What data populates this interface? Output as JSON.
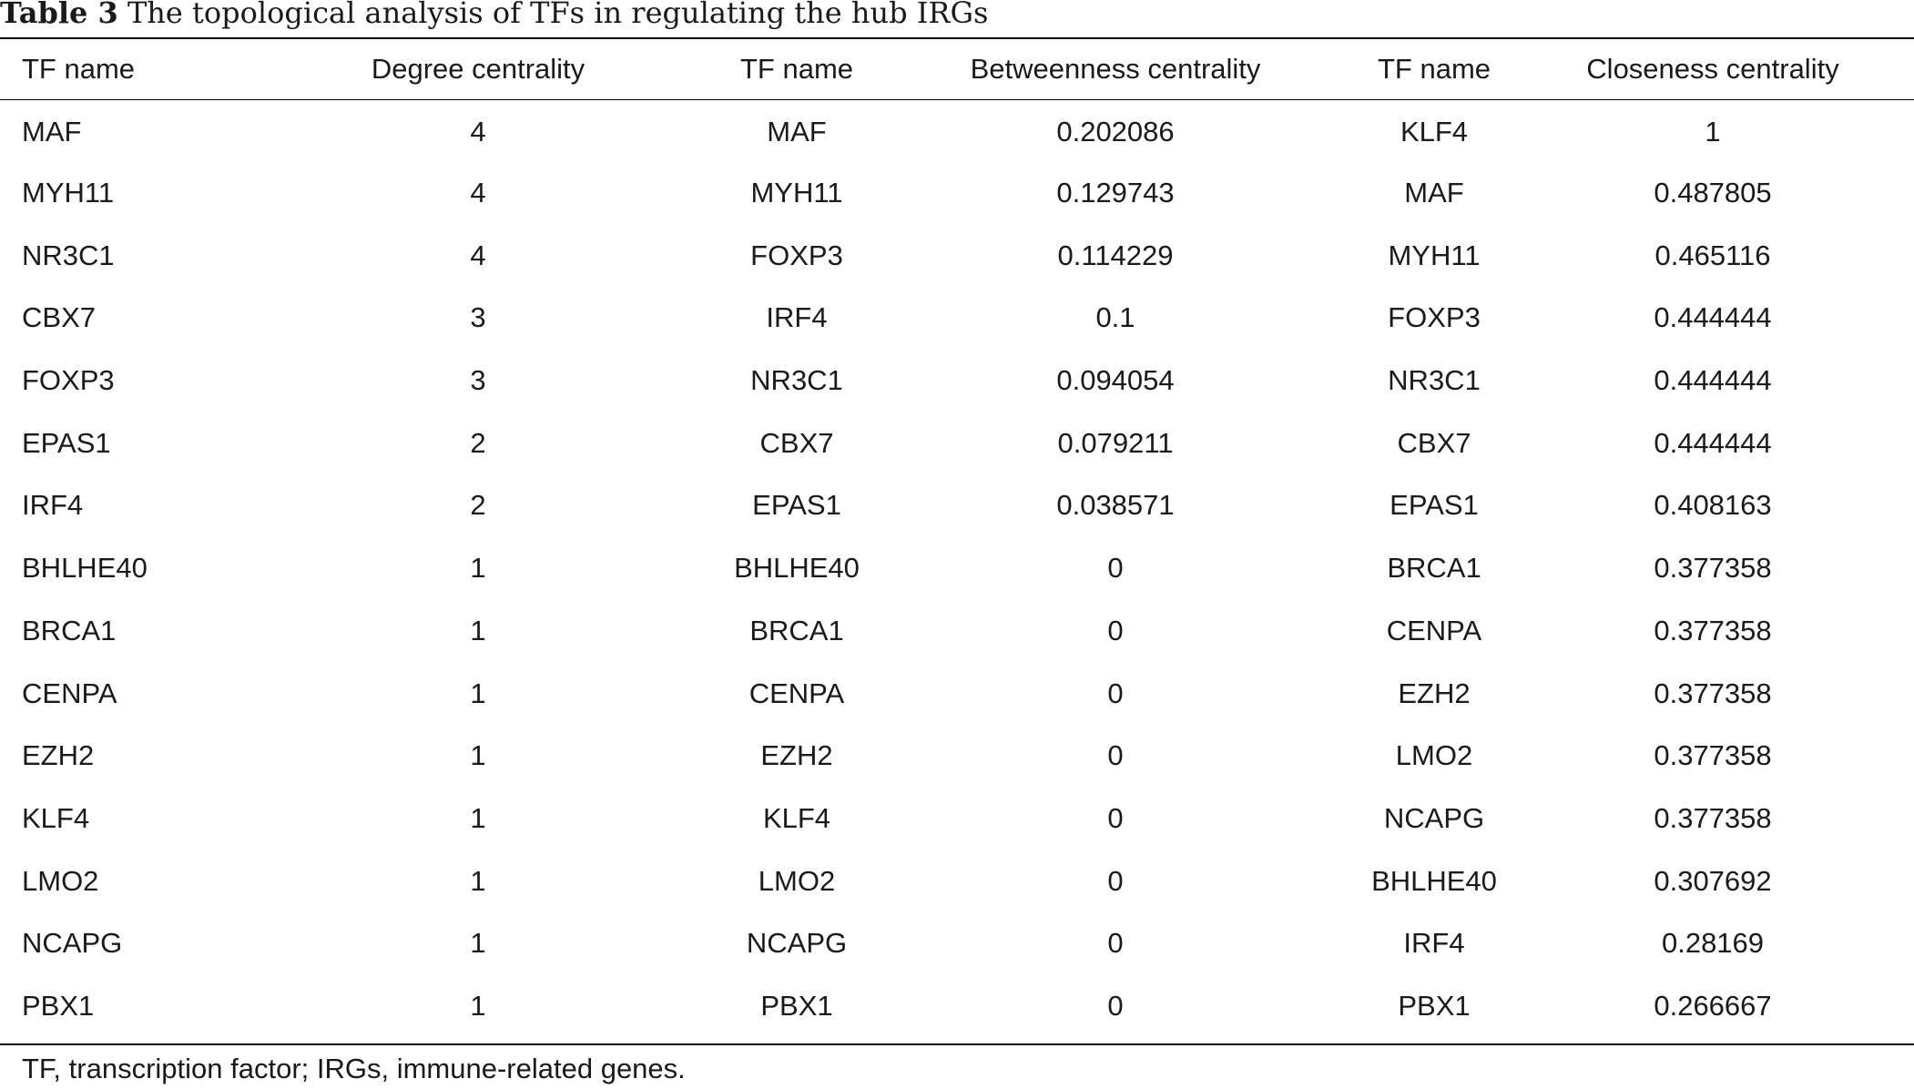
{
  "caption": {
    "label": "Table 3",
    "text": "The topological analysis of TFs in regulating the hub IRGs"
  },
  "table": {
    "headers": [
      "TF name",
      "Degree centrality",
      "TF name",
      "Betweenness centrality",
      "TF name",
      "Closeness centrality"
    ],
    "rows": [
      [
        "MAF",
        "4",
        "MAF",
        "0.202086",
        "KLF4",
        "1"
      ],
      [
        "MYH11",
        "4",
        "MYH11",
        "0.129743",
        "MAF",
        "0.487805"
      ],
      [
        "NR3C1",
        "4",
        "FOXP3",
        "0.114229",
        "MYH11",
        "0.465116"
      ],
      [
        "CBX7",
        "3",
        "IRF4",
        "0.1",
        "FOXP3",
        "0.444444"
      ],
      [
        "FOXP3",
        "3",
        "NR3C1",
        "0.094054",
        "NR3C1",
        "0.444444"
      ],
      [
        "EPAS1",
        "2",
        "CBX7",
        "0.079211",
        "CBX7",
        "0.444444"
      ],
      [
        "IRF4",
        "2",
        "EPAS1",
        "0.038571",
        "EPAS1",
        "0.408163"
      ],
      [
        "BHLHE40",
        "1",
        "BHLHE40",
        "0",
        "BRCA1",
        "0.377358"
      ],
      [
        "BRCA1",
        "1",
        "BRCA1",
        "0",
        "CENPA",
        "0.377358"
      ],
      [
        "CENPA",
        "1",
        "CENPA",
        "0",
        "EZH2",
        "0.377358"
      ],
      [
        "EZH2",
        "1",
        "EZH2",
        "0",
        "LMO2",
        "0.377358"
      ],
      [
        "KLF4",
        "1",
        "KLF4",
        "0",
        "NCAPG",
        "0.377358"
      ],
      [
        "LMO2",
        "1",
        "LMO2",
        "0",
        "BHLHE40",
        "0.307692"
      ],
      [
        "NCAPG",
        "1",
        "NCAPG",
        "0",
        "IRF4",
        "0.28169"
      ],
      [
        "PBX1",
        "1",
        "PBX1",
        "0",
        "PBX1",
        "0.266667"
      ]
    ]
  },
  "footnote": "TF, transcription factor; IRGs, immune-related genes."
}
